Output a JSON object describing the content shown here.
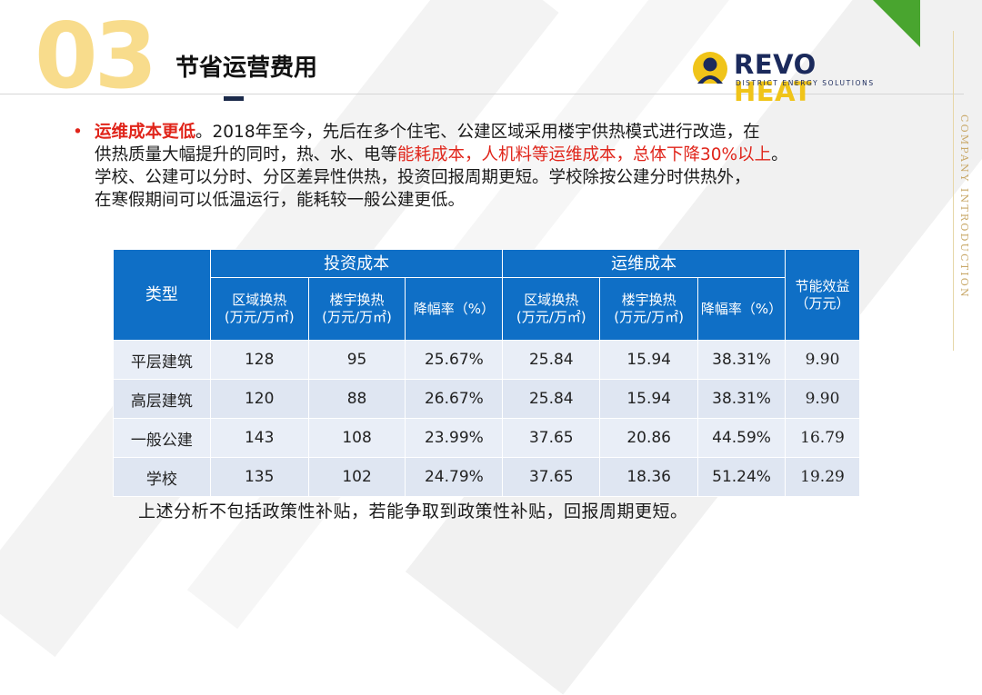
{
  "header": {
    "section_number": "03",
    "title": "节省运营费用"
  },
  "logo": {
    "revo": "REVO",
    "heat": "HEAT",
    "tagline": "DISTRICT ENERGY SOLUTIONS"
  },
  "side_text": "COMPANY INTRODUCTION",
  "body": {
    "bullet": "•",
    "lead": "运维成本更低",
    "line1_rest": "。2018年至今，先后在多个住宅、公建区域采用楼宇供热模式进行改造，在",
    "line2_plain": "供热质量大幅提升的同时，热、水、电等",
    "line2_red": "能耗成本，人机料等运维成本，总体下降30%以上",
    "line2_end": "。",
    "line3": "学校、公建可以分时、分区差异性供热，投资回报周期更短。学校除按公建分时供热外，",
    "line4": "在寒假期间可以低温运行，能耗较一般公建更低。"
  },
  "table": {
    "type_header": "类型",
    "group_invest": "投资成本",
    "group_ops": "运维成本",
    "saving_header": "节能效益",
    "saving_unit": "（万元）",
    "sub": [
      {
        "label": "区域换热",
        "unit": "(万元/万㎡)"
      },
      {
        "label": "楼宇换热",
        "unit": "(万元/万㎡)"
      },
      {
        "label": "降幅率（%）",
        "unit": ""
      },
      {
        "label": "区域换热",
        "unit": "(万元/万㎡)"
      },
      {
        "label": "楼宇换热",
        "unit": "(万元/万㎡)"
      },
      {
        "label": "降幅率（%）",
        "unit": ""
      }
    ],
    "rows": [
      {
        "type": "平层建筑",
        "v": [
          "128",
          "95",
          "25.67%",
          "25.84",
          "15.94",
          "38.31%",
          "9.90"
        ]
      },
      {
        "type": "高层建筑",
        "v": [
          "120",
          "88",
          "26.67%",
          "25.84",
          "15.94",
          "38.31%",
          "9.90"
        ]
      },
      {
        "type": "一般公建",
        "v": [
          "143",
          "108",
          "23.99%",
          "37.65",
          "20.86",
          "44.59%",
          "16.79"
        ]
      },
      {
        "type": "学校",
        "v": [
          "135",
          "102",
          "24.79%",
          "37.65",
          "18.36",
          "51.24%",
          "19.29"
        ]
      }
    ]
  },
  "footnote": "上述分析不包括政策性补贴，若能争取到政策性补贴，回报周期更短。",
  "colors": {
    "accent_blue": "#0f6fc6",
    "accent_red": "#e0251b",
    "number_yellow": "#f8dc8c",
    "logo_green": "#49a52f",
    "logo_yellow": "#f0c419",
    "logo_navy": "#1b2a5c"
  },
  "icons": {
    "logo_mark": "revo-heat-logo-icon"
  }
}
